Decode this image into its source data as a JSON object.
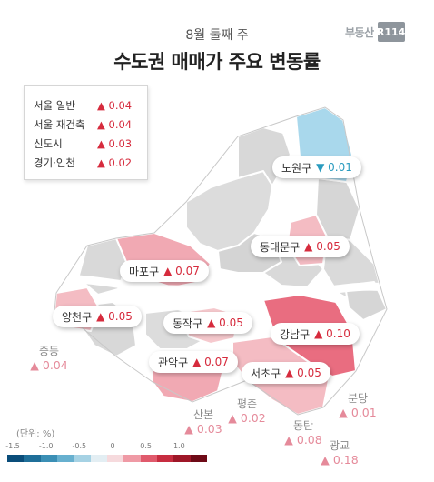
{
  "header": {
    "subtitle": "8월 둘째 주",
    "title": "수도권 매매가 주요 변동률",
    "brand_text": "부동산",
    "brand_logo": "R114"
  },
  "summary": [
    {
      "name": "서울 일반",
      "value": "▲ 0.04"
    },
    {
      "name": "서울 재건축",
      "value": "▲ 0.04"
    },
    {
      "name": "신도시",
      "value": "▲ 0.03"
    },
    {
      "name": "경기·인천",
      "value": "▲ 0.02"
    }
  ],
  "seoul_districts": [
    {
      "name": "노원구",
      "value": "▼ 0.01",
      "direction": "down"
    },
    {
      "name": "동대문구",
      "value": "▲ 0.05",
      "direction": "up"
    },
    {
      "name": "마포구",
      "value": "▲ 0.07",
      "direction": "up"
    },
    {
      "name": "양천구",
      "value": "▲ 0.05",
      "direction": "up"
    },
    {
      "name": "동작구",
      "value": "▲ 0.05",
      "direction": "up"
    },
    {
      "name": "강남구",
      "value": "▲ 0.10",
      "direction": "up"
    },
    {
      "name": "관악구",
      "value": "▲ 0.07",
      "direction": "up"
    },
    {
      "name": "서초구",
      "value": "▲ 0.05",
      "direction": "up"
    }
  ],
  "new_towns": [
    {
      "name": "중동",
      "value": "▲ 0.04"
    },
    {
      "name": "산본",
      "value": "▲ 0.03"
    },
    {
      "name": "평촌",
      "value": "▲ 0.02"
    },
    {
      "name": "분당",
      "value": "▲ 0.01"
    },
    {
      "name": "동탄",
      "value": "▲ 0.08"
    },
    {
      "name": "광교",
      "value": "▲ 0.18"
    }
  ],
  "scale": {
    "unit_label": "(단위: %)",
    "ticks": [
      "-1.5",
      "-1.0",
      "-0.5",
      "0",
      "0.5",
      "1.0"
    ],
    "colors": [
      "#0a4d7a",
      "#1f6f99",
      "#3b8fb5",
      "#67b0cf",
      "#a6d2e4",
      "#e3eef3",
      "#f6dadd",
      "#ef9aa5",
      "#e05a6c",
      "#c72d40",
      "#9e1728",
      "#6e0a17"
    ]
  },
  "colors": {
    "up": "#d62b3d",
    "down": "#2a9bbf",
    "map_gray": "#dcdcdc",
    "river": "#ffffff"
  }
}
